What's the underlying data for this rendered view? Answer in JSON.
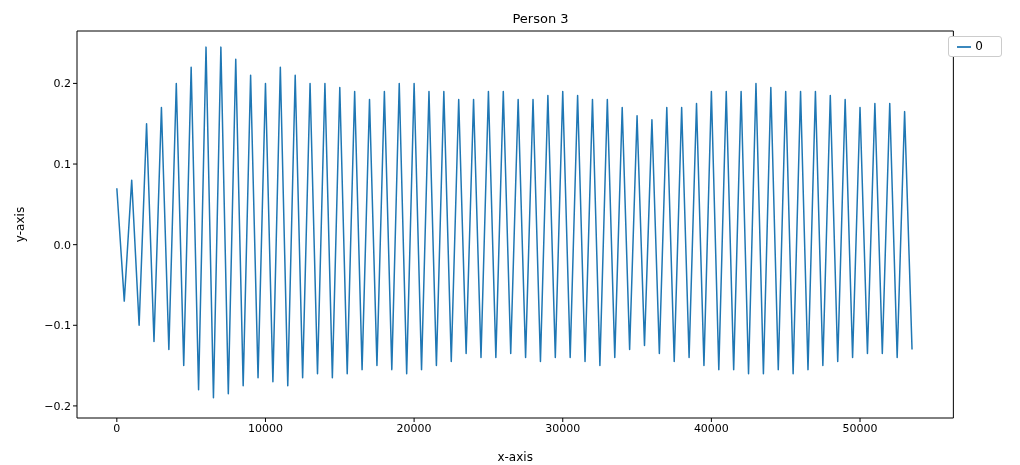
{
  "chart_data": {
    "type": "line",
    "title": "Person 3",
    "xlabel": "x-axis",
    "ylabel": "y-axis",
    "x": [
      0,
      500,
      1000,
      1500,
      2000,
      2500,
      3000,
      3500,
      4000,
      4500,
      5000,
      5500,
      6000,
      6500,
      7000,
      7500,
      8000,
      8500,
      9000,
      9500,
      10000,
      10500,
      11000,
      11500,
      12000,
      12500,
      13000,
      13500,
      14000,
      14500,
      15000,
      15500,
      16000,
      16500,
      17000,
      17500,
      18000,
      18500,
      19000,
      19500,
      20000,
      20500,
      21000,
      21500,
      22000,
      22500,
      23000,
      23500,
      24000,
      24500,
      25000,
      25500,
      26000,
      26500,
      27000,
      27500,
      28000,
      28500,
      29000,
      29500,
      30000,
      30500,
      31000,
      31500,
      32000,
      32500,
      33000,
      33500,
      34000,
      34500,
      35000,
      35500,
      36000,
      36500,
      37000,
      37500,
      38000,
      38500,
      39000,
      39500,
      40000,
      40500,
      41000,
      41500,
      42000,
      42500,
      43000,
      43500,
      44000,
      44500,
      45000,
      45500,
      46000,
      46500,
      47000,
      47500,
      48000,
      48500,
      49000,
      49500,
      50000,
      50500,
      51000,
      51500,
      52000,
      52500,
      53000,
      53500
    ],
    "series": [
      {
        "name": "0",
        "color": "#1f77b4",
        "values": [
          0.07,
          -0.07,
          0.08,
          -0.1,
          0.15,
          -0.12,
          0.17,
          -0.13,
          0.2,
          -0.15,
          0.22,
          -0.18,
          0.245,
          -0.19,
          0.245,
          -0.185,
          0.23,
          -0.175,
          0.21,
          -0.165,
          0.2,
          -0.17,
          0.22,
          -0.175,
          0.21,
          -0.165,
          0.2,
          -0.16,
          0.2,
          -0.165,
          0.195,
          -0.16,
          0.19,
          -0.155,
          0.18,
          -0.15,
          0.19,
          -0.155,
          0.2,
          -0.16,
          0.2,
          -0.155,
          0.19,
          -0.15,
          0.19,
          -0.145,
          0.18,
          -0.135,
          0.18,
          -0.14,
          0.19,
          -0.14,
          0.19,
          -0.135,
          0.18,
          -0.14,
          0.18,
          -0.145,
          0.185,
          -0.14,
          0.19,
          -0.14,
          0.185,
          -0.145,
          0.18,
          -0.15,
          0.18,
          -0.14,
          0.17,
          -0.13,
          0.16,
          -0.125,
          0.155,
          -0.135,
          0.17,
          -0.145,
          0.17,
          -0.14,
          0.175,
          -0.15,
          0.19,
          -0.155,
          0.19,
          -0.155,
          0.19,
          -0.16,
          0.2,
          -0.16,
          0.195,
          -0.155,
          0.19,
          -0.16,
          0.19,
          -0.155,
          0.19,
          -0.15,
          0.185,
          -0.145,
          0.18,
          -0.14,
          0.17,
          -0.135,
          0.175,
          -0.135,
          0.175,
          -0.14,
          0.165,
          -0.13
        ]
      }
    ],
    "xlim": [
      -2680,
      56280
    ],
    "xticks": [
      0,
      10000,
      20000,
      30000,
      40000,
      50000
    ],
    "ylim": [
      -0.215,
      0.265
    ],
    "yticks": [
      {
        "value": -0.2,
        "label": "−0.2"
      },
      {
        "value": -0.1,
        "label": "−0.1"
      },
      {
        "value": 0,
        "label": "0.0"
      },
      {
        "value": 0.1,
        "label": "0.1"
      },
      {
        "value": 0.2,
        "label": "0.2"
      }
    ],
    "legend": "top right",
    "grid": false,
    "marker": "none",
    "line_style": "solid"
  }
}
